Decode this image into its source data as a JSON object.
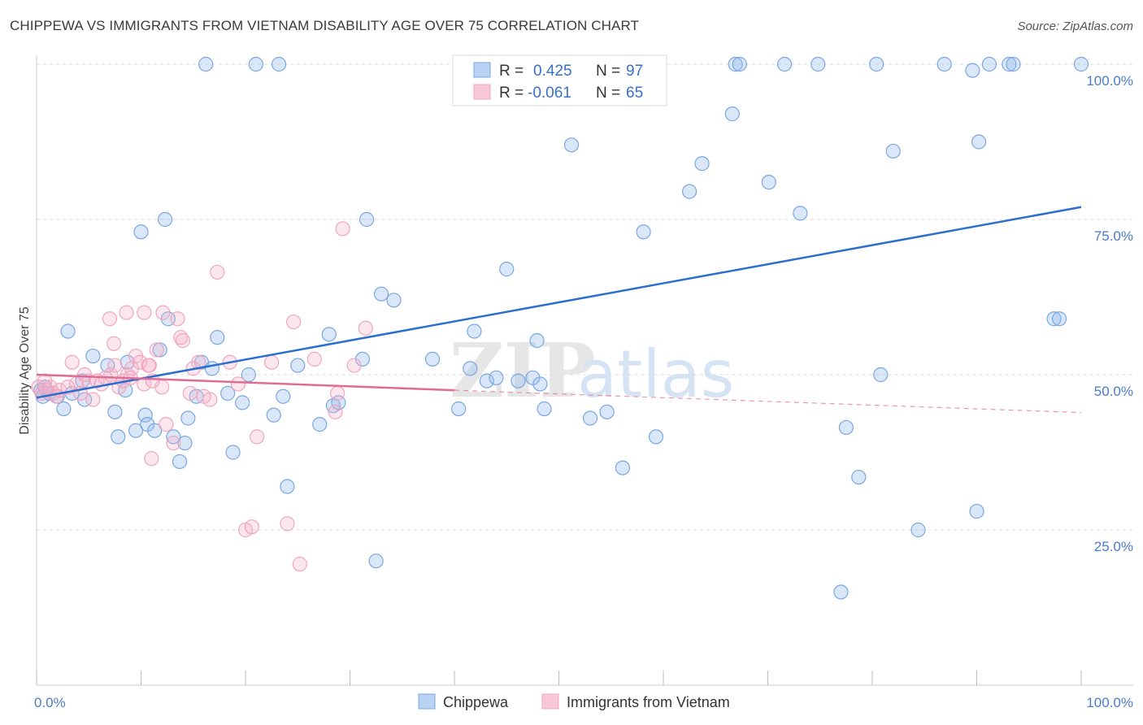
{
  "title": "CHIPPEWA VS IMMIGRANTS FROM VIETNAM DISABILITY AGE OVER 75 CORRELATION CHART",
  "source": "Source: ZipAtlas.com",
  "watermark": {
    "zip": "ZIP",
    "atlas": "atlas"
  },
  "legend": {
    "r_label": "R =",
    "n_label": "N =",
    "rows": [
      {
        "r": "0.425",
        "n": "97"
      },
      {
        "r": "-0.061",
        "n": "65"
      }
    ]
  },
  "chart_data": {
    "type": "scatter",
    "title": "CHIPPEWA VS IMMIGRANTS FROM VIETNAM DISABILITY AGE OVER 75 CORRELATION CHART",
    "xlabel": "",
    "ylabel": "Disability Age Over 75",
    "xlim": [
      0,
      100
    ],
    "ylim": [
      0,
      104
    ],
    "x_tick_labels": [
      {
        "value": 0,
        "label": "0.0%"
      },
      {
        "value": 100,
        "label": "100.0%"
      }
    ],
    "y_ticks": [
      {
        "value": 25,
        "label": "25.0%"
      },
      {
        "value": 50,
        "label": "50.0%"
      },
      {
        "value": 75,
        "label": "75.0%"
      },
      {
        "value": 100,
        "label": "100.0%"
      }
    ],
    "grid": "horizontal dashed",
    "legend_position": "top-center",
    "series": [
      {
        "name": "Chippewa",
        "color": "#7aa7e0",
        "line_color": "#2a6fcf",
        "trend": {
          "x": [
            0,
            100
          ],
          "y": [
            46.3,
            77.0
          ]
        },
        "trend_dashed_from": null,
        "points": [
          [
            0.4,
            47.5
          ],
          [
            0.6,
            46.5
          ],
          [
            0.8,
            48.0
          ],
          [
            1.2,
            47.0
          ],
          [
            2.0,
            46.5
          ],
          [
            2.6,
            44.5
          ],
          [
            3.0,
            57.0
          ],
          [
            3.4,
            47.0
          ],
          [
            4.4,
            49.0
          ],
          [
            4.6,
            46.0
          ],
          [
            5.4,
            53.0
          ],
          [
            6.8,
            51.5
          ],
          [
            7.5,
            44.0
          ],
          [
            7.8,
            40.0
          ],
          [
            8.5,
            47.5
          ],
          [
            8.7,
            52.0
          ],
          [
            9.5,
            41.0
          ],
          [
            10.0,
            73.0
          ],
          [
            10.4,
            43.5
          ],
          [
            10.6,
            42.0
          ],
          [
            11.3,
            41.0
          ],
          [
            11.8,
            54.0
          ],
          [
            12.3,
            75.0
          ],
          [
            12.6,
            59.0
          ],
          [
            13.1,
            40.0
          ],
          [
            13.7,
            36.0
          ],
          [
            14.2,
            39.0
          ],
          [
            14.5,
            43.0
          ],
          [
            15.3,
            46.5
          ],
          [
            15.8,
            52.0
          ],
          [
            16.2,
            100.0
          ],
          [
            16.8,
            51.0
          ],
          [
            17.3,
            56.0
          ],
          [
            18.3,
            47.0
          ],
          [
            18.8,
            37.5
          ],
          [
            19.7,
            45.5
          ],
          [
            20.3,
            50.0
          ],
          [
            21.0,
            100.0
          ],
          [
            22.7,
            43.5
          ],
          [
            23.2,
            100.0
          ],
          [
            23.6,
            46.5
          ],
          [
            24.0,
            32.0
          ],
          [
            25.0,
            51.5
          ],
          [
            27.1,
            42.0
          ],
          [
            28.0,
            56.5
          ],
          [
            28.4,
            45.0
          ],
          [
            28.9,
            45.5
          ],
          [
            31.2,
            52.5
          ],
          [
            31.6,
            75.0
          ],
          [
            32.5,
            20.0
          ],
          [
            33.0,
            63.0
          ],
          [
            34.2,
            62.0
          ],
          [
            37.9,
            52.5
          ],
          [
            40.4,
            44.5
          ],
          [
            41.5,
            51.0
          ],
          [
            41.9,
            57.0
          ],
          [
            43.1,
            49.0
          ],
          [
            44.0,
            49.5
          ],
          [
            45.0,
            67.0
          ],
          [
            46.1,
            49.0
          ],
          [
            47.5,
            49.5
          ],
          [
            47.9,
            55.5
          ],
          [
            48.2,
            48.5
          ],
          [
            48.6,
            44.5
          ],
          [
            51.2,
            87.0
          ],
          [
            53.0,
            43.0
          ],
          [
            54.6,
            44.0
          ],
          [
            56.1,
            35.0
          ],
          [
            58.1,
            73.0
          ],
          [
            59.3,
            40.0
          ],
          [
            62.5,
            79.5
          ],
          [
            63.7,
            84.0
          ],
          [
            66.6,
            92.0
          ],
          [
            66.9,
            100.0
          ],
          [
            67.3,
            100.0
          ],
          [
            70.1,
            81.0
          ],
          [
            71.6,
            100.0
          ],
          [
            73.1,
            76.0
          ],
          [
            74.8,
            100.0
          ],
          [
            77.5,
            41.5
          ],
          [
            78.7,
            33.5
          ],
          [
            80.4,
            100.0
          ],
          [
            80.8,
            50.0
          ],
          [
            82.0,
            86.0
          ],
          [
            84.4,
            25.0
          ],
          [
            86.9,
            100.0
          ],
          [
            89.6,
            99.0
          ],
          [
            90.0,
            28.0
          ],
          [
            90.2,
            87.5
          ],
          [
            91.2,
            100.0
          ],
          [
            93.1,
            100.0
          ],
          [
            93.5,
            100.0
          ],
          [
            97.4,
            59.0
          ],
          [
            97.9,
            59.0
          ],
          [
            100.0,
            100.0
          ],
          [
            77.0,
            15.0
          ]
        ]
      },
      {
        "name": "Immigrants from Vietnam",
        "color": "#f0a6bf",
        "line_color": "#e06b93",
        "trend": {
          "x": [
            0,
            40
          ],
          "y": [
            50.0,
            47.5
          ]
        },
        "trend_dashed_extension": {
          "x": [
            40,
            100
          ],
          "y": [
            47.5,
            43.9
          ]
        },
        "points": [
          [
            0.2,
            48.0
          ],
          [
            0.5,
            47.0
          ],
          [
            0.8,
            49.0
          ],
          [
            1.0,
            47.5
          ],
          [
            1.3,
            48.0
          ],
          [
            1.6,
            47.0
          ],
          [
            1.9,
            46.5
          ],
          [
            2.2,
            47.5
          ],
          [
            3.0,
            48.0
          ],
          [
            3.4,
            52.0
          ],
          [
            3.8,
            48.5
          ],
          [
            4.2,
            47.0
          ],
          [
            4.6,
            50.0
          ],
          [
            5.0,
            49.0
          ],
          [
            5.4,
            46.0
          ],
          [
            5.8,
            49.0
          ],
          [
            6.2,
            48.5
          ],
          [
            6.6,
            49.5
          ],
          [
            7.1,
            50.0
          ],
          [
            7.5,
            51.5
          ],
          [
            7.9,
            48.0
          ],
          [
            8.3,
            49.0
          ],
          [
            8.7,
            50.0
          ],
          [
            9.1,
            51.0
          ],
          [
            9.5,
            53.0
          ],
          [
            9.9,
            52.0
          ],
          [
            10.3,
            48.5
          ],
          [
            10.7,
            51.5
          ],
          [
            11.1,
            49.0
          ],
          [
            12.1,
            60.0
          ],
          [
            13.8,
            56.0
          ],
          [
            13.5,
            59.0
          ],
          [
            14.0,
            55.5
          ],
          [
            7.0,
            59.0
          ],
          [
            7.4,
            55.0
          ],
          [
            8.6,
            60.0
          ],
          [
            10.3,
            60.0
          ],
          [
            10.8,
            51.5
          ],
          [
            11.5,
            54.0
          ],
          [
            12.0,
            48.0
          ],
          [
            12.4,
            42.0
          ],
          [
            13.1,
            39.0
          ],
          [
            14.7,
            47.0
          ],
          [
            15.5,
            52.0
          ],
          [
            16.6,
            46.0
          ],
          [
            17.3,
            66.5
          ],
          [
            18.5,
            52.0
          ],
          [
            19.3,
            48.5
          ],
          [
            20.0,
            25.0
          ],
          [
            20.6,
            25.5
          ],
          [
            21.1,
            40.0
          ],
          [
            22.5,
            52.0
          ],
          [
            24.6,
            58.5
          ],
          [
            25.2,
            19.5
          ],
          [
            24.0,
            26.0
          ],
          [
            26.6,
            52.5
          ],
          [
            28.6,
            44.0
          ],
          [
            28.8,
            47.0
          ],
          [
            29.3,
            73.5
          ],
          [
            30.4,
            51.5
          ],
          [
            31.5,
            57.5
          ],
          [
            11.0,
            36.5
          ],
          [
            15.0,
            51.0
          ],
          [
            16.0,
            46.5
          ],
          [
            9.0,
            49.5
          ]
        ]
      }
    ]
  }
}
